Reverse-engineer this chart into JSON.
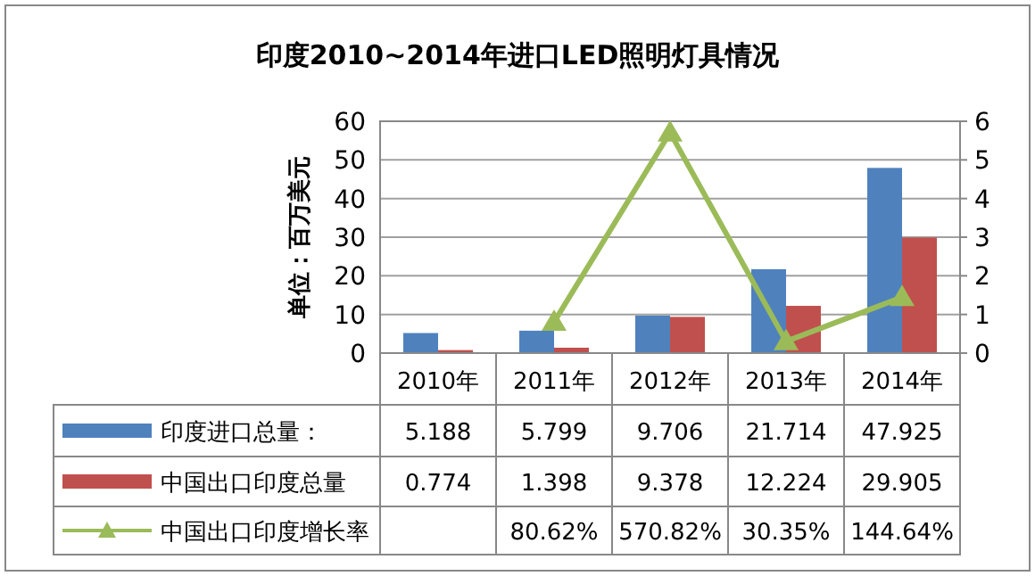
{
  "chart_data": {
    "type": "bar",
    "title": "印度2010~2014年进口LED照明灯具情况",
    "ylabel": "单位：百万美元",
    "categories": [
      "2010年",
      "2011年",
      "2012年",
      "2013年",
      "2014年"
    ],
    "series": [
      {
        "name": "印度进口总量：",
        "color": "#4f81bd",
        "values": [
          5.188,
          5.799,
          9.706,
          21.714,
          47.925
        ]
      },
      {
        "name": "中国出口印度总量",
        "color": "#c0504d",
        "values": [
          0.774,
          1.398,
          9.378,
          12.224,
          29.905
        ]
      },
      {
        "name": "中国出口印度增长率",
        "color": "#9bbb59",
        "type": "line",
        "axis": "y2",
        "marker": "triangle",
        "values": [
          null,
          0.8062,
          5.7082,
          0.3035,
          1.4464
        ],
        "value_labels": [
          null,
          "80.62%",
          "570.82%",
          "30.35%",
          "144.64%"
        ]
      }
    ],
    "data_labels": true,
    "ylim": [
      0,
      60
    ],
    "yticks": [
      0,
      10,
      20,
      30,
      40,
      50,
      60
    ],
    "y2lim": [
      0,
      6
    ],
    "y2ticks": [
      0,
      1,
      2,
      3,
      4,
      5,
      6
    ],
    "grid": "y",
    "legend": "bottom"
  }
}
